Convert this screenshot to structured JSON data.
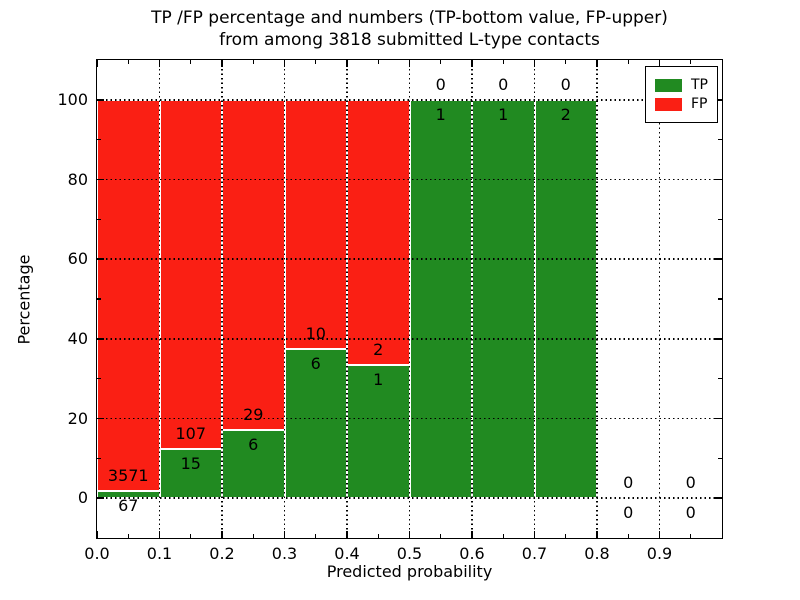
{
  "figure": {
    "title_line1": "TP /FP percentage and numbers (TP-bottom value, FP-upper)",
    "title_line2": "from among 3818 submitted L-type contacts",
    "xlabel": "Predicted probability",
    "ylabel": "Percentage"
  },
  "legend": {
    "position": "upper right",
    "entries": [
      {
        "label": "TP",
        "color": "#218a21"
      },
      {
        "label": "FP",
        "color": "#fa1f14"
      }
    ]
  },
  "chart_data": {
    "type": "bar",
    "stacked": true,
    "title": "TP /FP percentage and numbers (TP-bottom value, FP-upper) from among 3818 submitted L-type contacts",
    "xlabel": "Predicted probability",
    "ylabel": "Percentage",
    "total_contacts": 3818,
    "xlim": [
      0.0,
      1.0
    ],
    "ylim": [
      -10,
      110
    ],
    "x_ticks": [
      0.0,
      0.1,
      0.2,
      0.3,
      0.4,
      0.5,
      0.6,
      0.7,
      0.8,
      0.9
    ],
    "x_tick_labels": [
      "0.0",
      "0.1",
      "0.2",
      "0.3",
      "0.4",
      "0.5",
      "0.6",
      "0.7",
      "0.8",
      "0.9"
    ],
    "x_minor_ticks": [
      0.05,
      0.15,
      0.25,
      0.35,
      0.45,
      0.55,
      0.65,
      0.75,
      0.85,
      0.95
    ],
    "y_ticks": [
      0,
      20,
      40,
      60,
      80,
      100
    ],
    "y_tick_labels": [
      "0",
      "20",
      "40",
      "60",
      "80",
      "100"
    ],
    "y_minor_ticks": [
      10,
      30,
      50,
      70,
      90
    ],
    "grid": {
      "style": "dotted",
      "color": "#000000",
      "x_lines": [
        0.1,
        0.2,
        0.3,
        0.4,
        0.5,
        0.6,
        0.7,
        0.8,
        0.9
      ],
      "y_lines": [
        0,
        20,
        40,
        60,
        80,
        100
      ]
    },
    "series": [
      {
        "name": "TP",
        "color": "#218a21",
        "counts": [
          67,
          15,
          6,
          6,
          1,
          1,
          1,
          2,
          0,
          0
        ]
      },
      {
        "name": "FP",
        "color": "#fa1f14",
        "counts": [
          3571,
          107,
          29,
          10,
          2,
          0,
          0,
          0,
          0,
          0
        ]
      }
    ],
    "bins": [
      {
        "range": [
          0.0,
          0.1
        ],
        "tp": 67,
        "fp": 3571,
        "tp_pct": 1.84,
        "fp_pct": 98.16
      },
      {
        "range": [
          0.1,
          0.2
        ],
        "tp": 15,
        "fp": 107,
        "tp_pct": 12.3,
        "fp_pct": 87.7
      },
      {
        "range": [
          0.2,
          0.3
        ],
        "tp": 6,
        "fp": 29,
        "tp_pct": 17.14,
        "fp_pct": 82.86
      },
      {
        "range": [
          0.3,
          0.4
        ],
        "tp": 6,
        "fp": 10,
        "tp_pct": 37.5,
        "fp_pct": 62.5
      },
      {
        "range": [
          0.4,
          0.5
        ],
        "tp": 1,
        "fp": 2,
        "tp_pct": 33.33,
        "fp_pct": 66.67
      },
      {
        "range": [
          0.5,
          0.6
        ],
        "tp": 1,
        "fp": 0,
        "tp_pct": 100,
        "fp_pct": 0
      },
      {
        "range": [
          0.6,
          0.7
        ],
        "tp": 1,
        "fp": 0,
        "tp_pct": 100,
        "fp_pct": 0
      },
      {
        "range": [
          0.7,
          0.8
        ],
        "tp": 2,
        "fp": 0,
        "tp_pct": 100,
        "fp_pct": 0
      },
      {
        "range": [
          0.8,
          0.9
        ],
        "tp": 0,
        "fp": 0,
        "tp_pct": 0,
        "fp_pct": 0
      },
      {
        "range": [
          0.9,
          1.0
        ],
        "tp": 0,
        "fp": 0,
        "tp_pct": 0,
        "fp_pct": 0
      }
    ],
    "legend_position": "upper right"
  }
}
